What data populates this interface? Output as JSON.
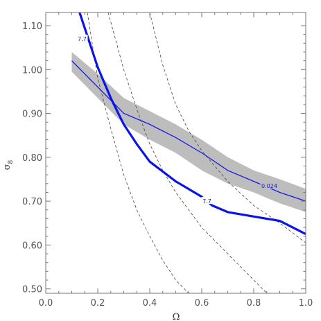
{
  "chart_data": {
    "type": "line",
    "xlabel": "Ω",
    "ylabel": "σ",
    "ylabel_subscript": "8",
    "xlim": [
      0.0,
      1.0
    ],
    "ylim": [
      0.49,
      1.13
    ],
    "grid": false,
    "xticks": [
      0.0,
      0.2,
      0.4,
      0.6,
      0.8,
      1.0
    ],
    "xtick_labels": [
      "0.0",
      "0.2",
      "0.4",
      "0.6",
      "0.8",
      "1.0"
    ],
    "yticks": [
      0.5,
      0.6,
      0.7,
      0.8,
      0.9,
      1.0,
      1.1
    ],
    "ytick_labels": [
      "0.50",
      "0.60",
      "0.70",
      "0.80",
      "0.90",
      "1.00",
      "1.10"
    ],
    "colors": {
      "band": "#bdbdbd",
      "fit_line": "#1a1adb",
      "thick_contour": "#0a14e6",
      "dashed": "#444444",
      "axes": "#777777"
    },
    "band": {
      "x": [
        0.1,
        0.2,
        0.3,
        0.4,
        0.5,
        0.6,
        0.7,
        0.8,
        0.9,
        1.0
      ],
      "upper": [
        1.04,
        0.99,
        0.935,
        0.905,
        0.875,
        0.84,
        0.8,
        0.77,
        0.75,
        0.728
      ],
      "lower": [
        0.995,
        0.935,
        0.875,
        0.84,
        0.81,
        0.77,
        0.74,
        0.72,
        0.695,
        0.675
      ]
    },
    "series": [
      {
        "role": "fit",
        "x": [
          0.1,
          0.2,
          0.3,
          0.4,
          0.5,
          0.6,
          0.7,
          0.8,
          0.9,
          1.0
        ],
        "y": [
          1.02,
          0.96,
          0.9,
          0.875,
          0.845,
          0.81,
          0.77,
          0.745,
          0.72,
          0.7
        ],
        "label": "0.024",
        "label_at": [
          0.86,
          0.735
        ]
      },
      {
        "role": "thick",
        "x": [
          0.13,
          0.2,
          0.25,
          0.3,
          0.35,
          0.4,
          0.5,
          0.6,
          0.64,
          0.7,
          0.8,
          0.9,
          1.0
        ],
        "y": [
          1.13,
          1.005,
          0.935,
          0.875,
          0.83,
          0.79,
          0.745,
          0.71,
          0.69,
          0.675,
          0.665,
          0.655,
          0.625
        ],
        "labels": [
          {
            "text": "7.7",
            "at": [
              0.14,
              1.07
            ]
          },
          {
            "text": "7.7",
            "at": [
              0.62,
              0.7
            ]
          }
        ]
      },
      {
        "role": "dashed",
        "x": [
          0.16,
          0.2,
          0.25,
          0.3,
          0.35,
          0.4,
          0.45,
          0.5,
          0.55
        ],
        "y": [
          1.13,
          0.98,
          0.865,
          0.76,
          0.68,
          0.62,
          0.565,
          0.52,
          0.49
        ]
      },
      {
        "role": "dashed",
        "x": [
          0.24,
          0.3,
          0.35,
          0.4,
          0.45,
          0.5,
          0.6,
          0.7,
          0.8,
          0.85
        ],
        "y": [
          1.13,
          1.0,
          0.91,
          0.83,
          0.77,
          0.72,
          0.64,
          0.58,
          0.52,
          0.49
        ]
      },
      {
        "role": "dashed",
        "x": [
          0.4,
          0.45,
          0.5,
          0.55,
          0.6,
          0.65,
          0.7,
          0.8,
          0.9,
          1.0
        ],
        "y": [
          1.13,
          1.01,
          0.92,
          0.86,
          0.815,
          0.78,
          0.745,
          0.69,
          0.65,
          0.605
        ]
      }
    ]
  }
}
